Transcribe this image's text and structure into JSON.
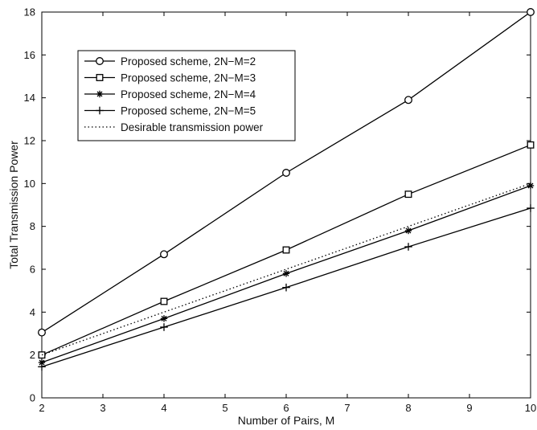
{
  "chart_data": {
    "type": "line",
    "title": "",
    "xlabel": "Number of Pairs, M",
    "ylabel": "Total Transmission Power",
    "xlim": [
      2,
      10
    ],
    "ylim": [
      0,
      18
    ],
    "xticks": [
      2,
      3,
      4,
      5,
      6,
      7,
      8,
      9,
      10
    ],
    "yticks": [
      0,
      2,
      4,
      6,
      8,
      10,
      12,
      14,
      16,
      18
    ],
    "grid": false,
    "legend_position": "top-left",
    "series": [
      {
        "name": "Proposed scheme, 2N−M=2",
        "marker": "circle",
        "line_style": "solid",
        "color": "#000000",
        "x": [
          2,
          4,
          6,
          8,
          10
        ],
        "y": [
          3.05,
          6.7,
          10.5,
          13.9,
          18.0
        ]
      },
      {
        "name": "Proposed scheme, 2N−M=3",
        "marker": "square",
        "line_style": "solid",
        "color": "#000000",
        "x": [
          2,
          4,
          6,
          8,
          10
        ],
        "y": [
          2.0,
          4.5,
          6.9,
          9.5,
          11.8
        ]
      },
      {
        "name": "Proposed scheme, 2N−M=4",
        "marker": "star",
        "line_style": "solid",
        "color": "#000000",
        "x": [
          2,
          4,
          6,
          8,
          10
        ],
        "y": [
          1.65,
          3.7,
          5.8,
          7.8,
          9.9
        ]
      },
      {
        "name": "Proposed scheme, 2N−M=5",
        "marker": "plus",
        "line_style": "solid",
        "color": "#000000",
        "x": [
          2,
          4,
          6,
          8,
          10
        ],
        "y": [
          1.45,
          3.3,
          5.15,
          7.05,
          8.85
        ]
      },
      {
        "name": "Desirable transmission power",
        "marker": "none",
        "line_style": "dotted",
        "color": "#000000",
        "x": [
          2,
          4,
          6,
          8,
          10
        ],
        "y": [
          2,
          4,
          6,
          8,
          10
        ]
      }
    ]
  }
}
